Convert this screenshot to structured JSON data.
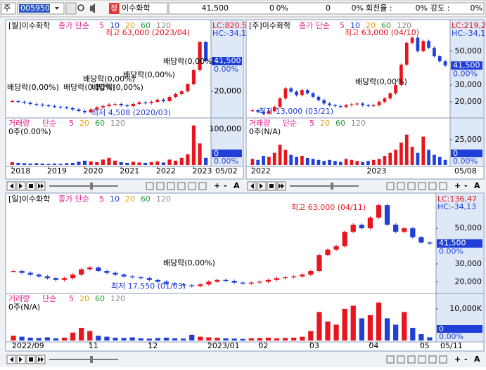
{
  "toolbar": {
    "market": "주",
    "code": "005950",
    "badge": "정",
    "name": "이수화학",
    "price": "41,500",
    "change": "0",
    "change_pct": "0%",
    "volume": "0",
    "volume_pct": "0%",
    "turnover_label": "회전율 :",
    "turnover": "0%",
    "strength_label": "강도 :",
    "strength": "0%"
  },
  "panel_tools": [
    "+",
    "-",
    "A"
  ],
  "chart_data": [
    {
      "type": "candlestick",
      "title": "[월]이수화학",
      "ma_label": "종가 단순",
      "ma_periods": [
        5,
        10,
        20,
        60,
        120
      ],
      "ma_colors": [
        "#e0208a",
        "#1f3fd6",
        "#e6a100",
        "#2a9a3a",
        "#888888"
      ],
      "lc_label": "LC:820.5",
      "hc_label": "HC:-34,1",
      "price_label": "41,500",
      "price_pct": "0.00%",
      "annotations": [
        "최고 63,000 (2023/04)",
        "배당락(0,00%)",
        "배당락(0,00%)",
        "배당락(0,00%)",
        "배당락(0,00%)",
        "배당락(0,00%)",
        "배당락(0,00%)",
        "최저 4,508 (2020/03)"
      ],
      "categories": [
        "2018",
        null,
        null,
        null,
        null,
        null,
        "2019",
        null,
        null,
        null,
        null,
        null,
        "2020",
        null,
        null,
        null,
        null,
        null,
        "2021",
        null,
        null,
        null,
        null,
        null,
        "2022",
        null,
        null,
        null,
        null,
        null,
        "2023",
        null,
        null
      ],
      "values": [
        13000,
        12500,
        11800,
        11000,
        10500,
        10000,
        9500,
        9000,
        8500,
        8000,
        7000,
        6000,
        5000,
        7000,
        8500,
        9500,
        10500,
        11000,
        10000,
        9500,
        11000,
        12000,
        11500,
        12500,
        14000,
        13000,
        16000,
        18000,
        20000,
        25000,
        35000,
        55000,
        41500
      ],
      "up_color": "#e8141e",
      "down_color": "#1f3fd6",
      "ylim": [
        2500,
        69000
      ],
      "yticks": [
        {
          "value": 20000,
          "label": "20,000"
        }
      ],
      "volume": {
        "title": "거래량",
        "ma_label": "단순",
        "ma_periods": [
          5,
          20,
          60,
          120
        ],
        "info": "0주(0.00%)",
        "current": "0",
        "pct": "0.00%",
        "values": [
          8000,
          6000,
          5000,
          4000,
          5000,
          4000,
          3000,
          4000,
          3000,
          5000,
          6000,
          9000,
          12000,
          10000,
          8000,
          15000,
          20000,
          12000,
          8000,
          6000,
          9000,
          7000,
          6000,
          8000,
          10000,
          7000,
          15000,
          12000,
          20000,
          30000,
          110000,
          60000,
          20000
        ],
        "ylim": [
          0,
          127000
        ],
        "yticks": [
          {
            "value": 100000,
            "label": "100,000"
          }
        ]
      },
      "date_label": "05/02"
    },
    {
      "type": "candlestick",
      "title": "[주]이수화학",
      "ma_label": "종가 단순",
      "ma_periods": [
        5,
        10,
        20,
        60,
        120
      ],
      "ma_colors": [
        "#e0208a",
        "#1f3fd6",
        "#e6a100",
        "#2a9a3a",
        "#888888"
      ],
      "lc_label": "LC:219,2",
      "hc_label": "HC:-34,1",
      "price_label": "41,500",
      "price_pct": "0.00%",
      "annotations": [
        "최고 63,000 (04/10)",
        "배당락(0,00%)",
        "최저 13,000 (03/21)"
      ],
      "categories": [
        "2022",
        null,
        null,
        null,
        null,
        null,
        null,
        null,
        null,
        null,
        null,
        null,
        null,
        null,
        null,
        null,
        null,
        null,
        null,
        null,
        null,
        "2023",
        null,
        null,
        null,
        null,
        null,
        null,
        null,
        null,
        null,
        null,
        null,
        null,
        null,
        null
      ],
      "values": [
        15000,
        14000,
        13000,
        14500,
        17000,
        22000,
        28000,
        26000,
        24000,
        27000,
        25000,
        23000,
        21000,
        19000,
        18000,
        17500,
        17000,
        18000,
        18500,
        19000,
        18000,
        17500,
        18000,
        20000,
        22000,
        25000,
        30000,
        42000,
        55000,
        58000,
        50000,
        56000,
        52000,
        47000,
        44000,
        41500
      ],
      "up_color": "#e8141e",
      "down_color": "#1f3fd6",
      "ylim": [
        11700,
        67000
      ],
      "yticks": [
        {
          "value": 20000,
          "label": "20,000"
        },
        {
          "value": 30000,
          "label": "30,000"
        },
        {
          "value": 50000,
          "label": "50,000"
        }
      ],
      "volume": {
        "title": "거래량",
        "ma_label": "단순",
        "ma_periods": [
          5,
          20,
          60,
          120
        ],
        "info": "0주(N/A)",
        "current": "0",
        "pct": "0.00%",
        "values": [
          6000,
          5000,
          9000,
          8000,
          12000,
          20000,
          15000,
          10000,
          8000,
          9000,
          7000,
          6000,
          5000,
          4000,
          5000,
          4000,
          3000,
          6000,
          5000,
          4000,
          3000,
          4000,
          5000,
          6000,
          9000,
          12000,
          15000,
          22000,
          30000,
          18000,
          12000,
          28000,
          15000,
          10000,
          8000,
          5000
        ],
        "ylim": [
          0,
          45000
        ],
        "yticks": [
          {
            "value": 25000,
            "label": "25,000"
          }
        ]
      },
      "date_label": "05/08"
    },
    {
      "type": "candlestick",
      "title": "[일]이수화학",
      "ma_label": "종가 단순",
      "ma_periods": [
        5,
        10,
        20,
        60,
        120
      ],
      "ma_colors": [
        "#e0208a",
        "#1f3fd6",
        "#e6a100",
        "#2a9a3a",
        "#888888"
      ],
      "lc_label": "LC:136,47",
      "hc_label": "HC:-34,13",
      "price_label": "41,500",
      "price_pct": "0.00%",
      "annotations": [
        "최고 63,000 (04/11)",
        "배당락(0,00%)",
        "최저 17,550 (01/03)"
      ],
      "categories": [
        "2022/09",
        null,
        null,
        null,
        null,
        null,
        null,
        null,
        null,
        "11",
        null,
        null,
        null,
        null,
        null,
        null,
        "12",
        null,
        null,
        null,
        null,
        null,
        null,
        "2023/01",
        null,
        null,
        null,
        null,
        null,
        "02",
        null,
        null,
        null,
        null,
        null,
        "03",
        null,
        null,
        null,
        null,
        null,
        null,
        "04",
        null,
        null,
        null,
        null,
        null,
        "05",
        null
      ],
      "values": [
        26000,
        25000,
        24000,
        23000,
        22000,
        21000,
        22000,
        24000,
        27000,
        28000,
        26000,
        25000,
        24000,
        23000,
        22500,
        22000,
        21000,
        20000,
        19000,
        18500,
        18000,
        17550,
        18500,
        20000,
        21000,
        20500,
        19500,
        19000,
        19500,
        20000,
        21000,
        22000,
        22500,
        23000,
        24000,
        26000,
        35000,
        38000,
        40000,
        48000,
        52000,
        50000,
        56000,
        63000,
        52000,
        48000,
        50000,
        45000,
        42000,
        41500
      ],
      "up_color": "#e8141e",
      "down_color": "#1f3fd6",
      "ylim": [
        14600,
        67000
      ],
      "yticks": [
        {
          "value": 20000,
          "label": "20,000"
        },
        {
          "value": 30000,
          "label": "30,000"
        },
        {
          "value": 50000,
          "label": "50,000"
        }
      ],
      "volume": {
        "title": "거래량",
        "ma_label": "단순",
        "ma_periods": [
          5,
          20,
          60,
          120
        ],
        "info": "0주(N/A)",
        "current": "0",
        "pct": "0.00%",
        "values": [
          1500,
          1200,
          900,
          800,
          1000,
          700,
          900,
          2500,
          4000,
          3000,
          1500,
          1200,
          900,
          800,
          1000,
          700,
          600,
          800,
          900,
          700,
          600,
          1800,
          1200,
          1000,
          900,
          700,
          600,
          500,
          700,
          800,
          900,
          700,
          800,
          900,
          1200,
          3000,
          9000,
          6000,
          5000,
          10000,
          11000,
          7000,
          8000,
          12000,
          7000,
          5000,
          9000,
          4000,
          2000,
          1000
        ],
        "ylim": [
          0,
          14400
        ],
        "yticks": [
          {
            "value": 10000,
            "label": "10,000K"
          }
        ]
      },
      "date_label": "05/11"
    }
  ]
}
